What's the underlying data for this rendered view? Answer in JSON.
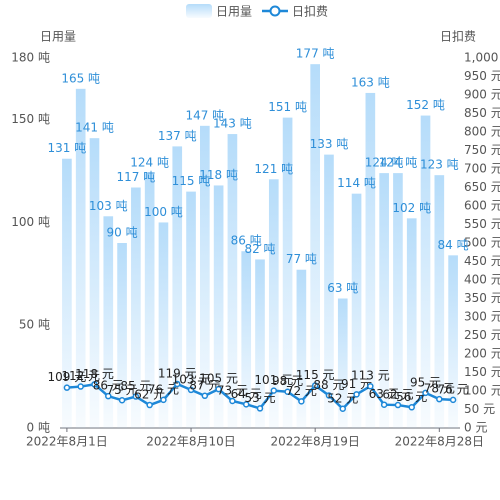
{
  "chart_data": {
    "type": "bar_line",
    "legend": [
      "日用量",
      "日扣费"
    ],
    "ylabel": "日用量",
    "y2label": "日扣费",
    "categories": [
      "2022年8月1日",
      null,
      null,
      null,
      null,
      null,
      null,
      null,
      null,
      "2022年8月10日",
      null,
      null,
      null,
      null,
      null,
      null,
      null,
      null,
      "2022年8月19日",
      null,
      null,
      null,
      null,
      null,
      null,
      null,
      null,
      "2022年8月28日",
      null
    ],
    "series": [
      {
        "name": "日用量",
        "type": "bar",
        "color": "#b5dcfa",
        "label_color": "#2f8fd8",
        "values": [
          131,
          165,
          141,
          103,
          90,
          117,
          124,
          100,
          137,
          115,
          147,
          118,
          143,
          86,
          82,
          121,
          151,
          77,
          177,
          133,
          63,
          114,
          163,
          124,
          124,
          102,
          152,
          123,
          84
        ],
        "value_labels": [
          "131 吨",
          "165 吨",
          "141 吨",
          "103 吨",
          "90 吨",
          "117 吨",
          "124 吨",
          "100 吨",
          "137 吨",
          "115 吨",
          "147 吨",
          "118 吨",
          "143 吨",
          "86 吨",
          "82 吨",
          "121 吨",
          "151 吨",
          "77 吨",
          "177 吨",
          "133 吨",
          "63 吨",
          "114 吨",
          "163 吨",
          "124 吨",
          "124 吨",
          "102 吨",
          "152 吨",
          "123 吨",
          "84 吨"
        ]
      },
      {
        "name": "日扣费",
        "type": "line",
        "axis": "y2",
        "color": "#1e88d8",
        "label_color": "#222222",
        "values": [
          109,
          112,
          118,
          86,
          75,
          85,
          62,
          76,
          119,
          103,
          87,
          105,
          73,
          64,
          53,
          101,
          98,
          72,
          115,
          88,
          52,
          91,
          113,
          63,
          62,
          56,
          95,
          78,
          76
        ],
        "value_labels": [
          "109 元",
          "112 元",
          "118 元",
          "86 元",
          "75 元",
          "85 元",
          "62 元",
          "76 元",
          "119 元",
          "103 元",
          "87 元",
          "105 元",
          "73 元",
          "64 元",
          "53 元",
          "101 元",
          "98 元",
          "72 元",
          "115 元",
          "88 元",
          "52 元",
          "91 元",
          "113 元",
          "63 元",
          "62 元",
          "56 元",
          "95 元",
          "78 元",
          "76 元"
        ]
      }
    ],
    "ylim": [
      0,
      180
    ],
    "yticks": [
      {
        "value": 0,
        "label": "0 吨"
      },
      {
        "value": 50,
        "label": "50 吨"
      },
      {
        "value": 100,
        "label": "100 吨"
      },
      {
        "value": 150,
        "label": "150 吨"
      },
      {
        "value": 180,
        "label": "180 吨"
      }
    ],
    "y2lim": [
      0,
      1000
    ],
    "y2ticks": [
      {
        "value": 0,
        "label": "0 元"
      },
      {
        "value": 50,
        "label": "50 元"
      },
      {
        "value": 100,
        "label": "100 元"
      },
      {
        "value": 150,
        "label": "150 元"
      },
      {
        "value": 200,
        "label": "200 元"
      },
      {
        "value": 250,
        "label": "250 元"
      },
      {
        "value": 300,
        "label": "300 元"
      },
      {
        "value": 350,
        "label": "350 元"
      },
      {
        "value": 400,
        "label": "400 元"
      },
      {
        "value": 450,
        "label": "450 元"
      },
      {
        "value": 500,
        "label": "500 元"
      },
      {
        "value": 550,
        "label": "550 元"
      },
      {
        "value": 600,
        "label": "600 元"
      },
      {
        "value": 650,
        "label": "650 元"
      },
      {
        "value": 700,
        "label": "700 元"
      },
      {
        "value": 750,
        "label": "750 元"
      },
      {
        "value": 800,
        "label": "800 元"
      },
      {
        "value": 850,
        "label": "850 元"
      },
      {
        "value": 900,
        "label": "900 元"
      },
      {
        "value": 950,
        "label": "950 元"
      },
      {
        "value": 1000,
        "label": "1,000 元"
      }
    ],
    "grid": false
  }
}
